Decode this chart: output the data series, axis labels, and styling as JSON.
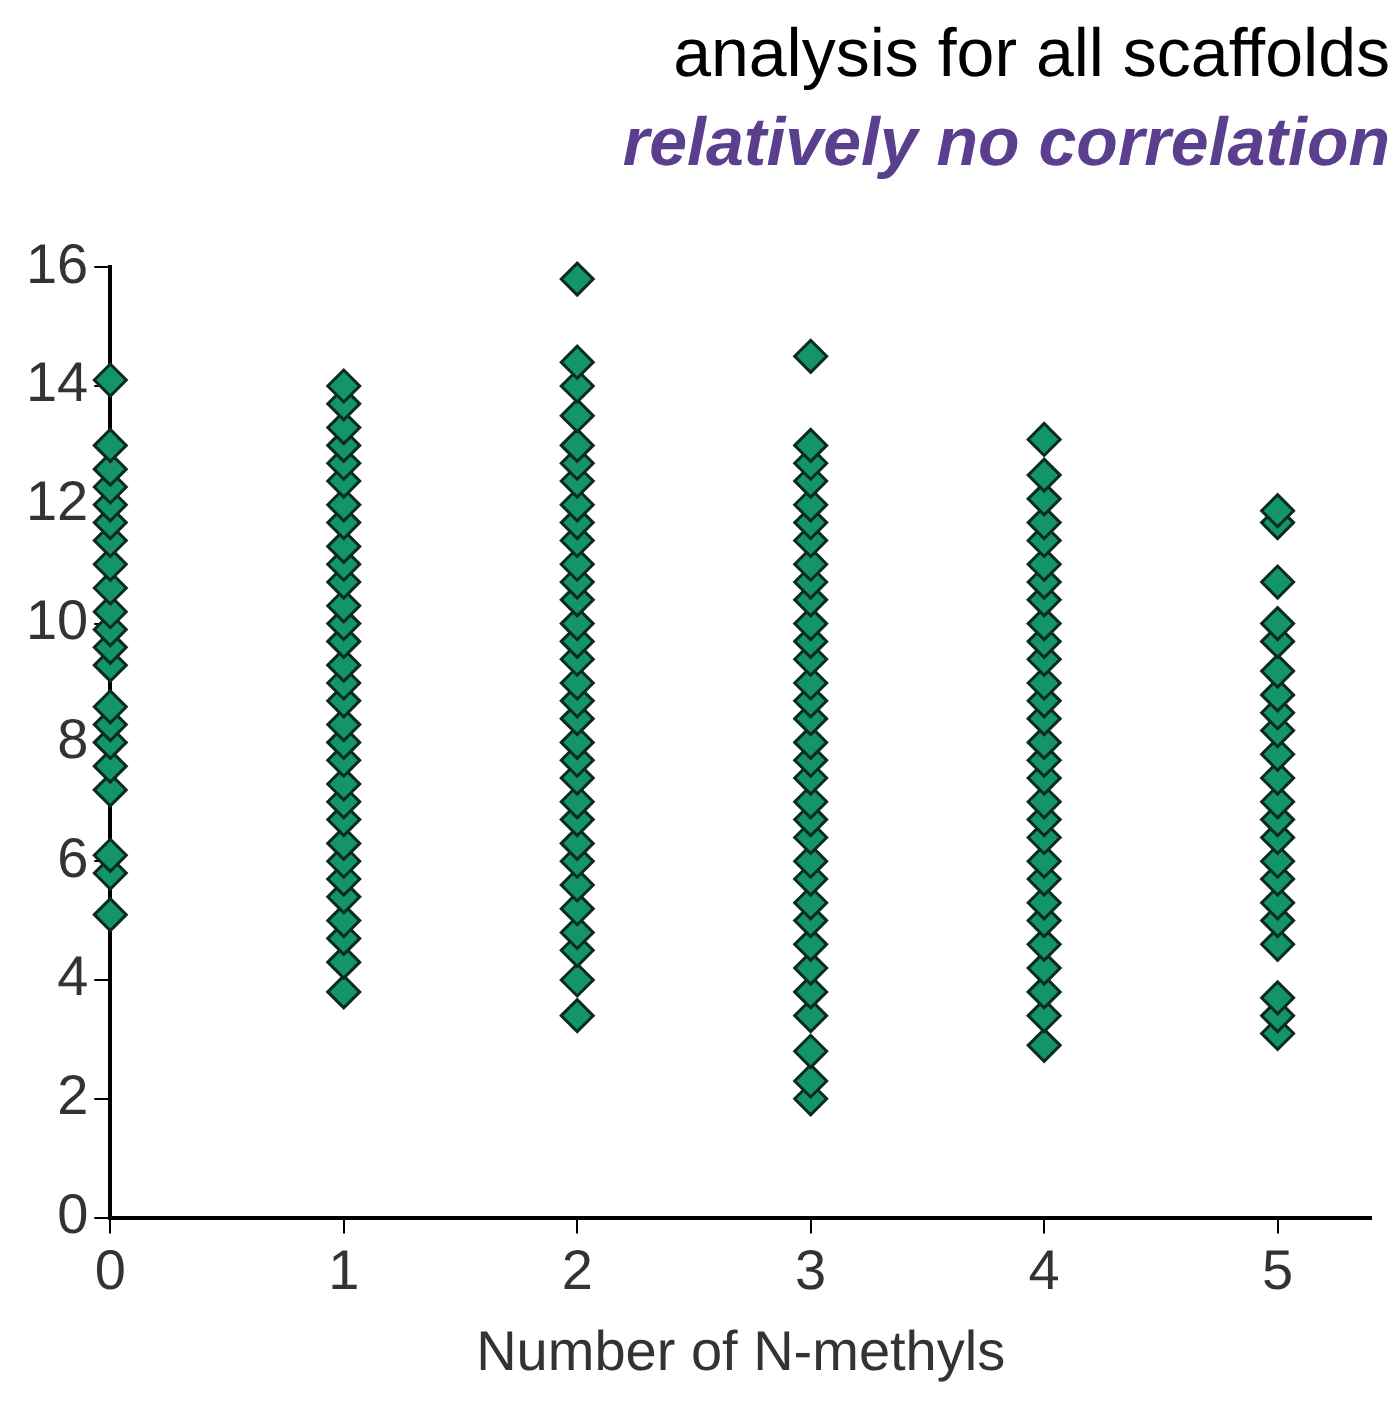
{
  "chart_data": {
    "type": "scatter",
    "title": "analysis for all scaffolds",
    "subtitle": "relatively no correlation",
    "xlabel": "Number of N-methyls",
    "marker": "diamond",
    "xlim": [
      0,
      5.4
    ],
    "xticks": [
      0,
      1,
      2,
      3,
      4,
      5
    ],
    "ylim": [
      0,
      16
    ],
    "yticks": [
      0,
      2,
      4,
      6,
      8,
      10,
      12,
      14,
      16
    ],
    "series": [
      {
        "color": "#14946a",
        "x": [
          0,
          0,
          0,
          0,
          0,
          0,
          0,
          0,
          0,
          0,
          0,
          0,
          0,
          0,
          0,
          0,
          0,
          0,
          0,
          0,
          0
        ],
        "values": [
          5.1,
          5.8,
          6.1,
          7.2,
          7.6,
          8.0,
          8.3,
          8.6,
          9.3,
          9.6,
          9.9,
          10.2,
          10.6,
          11.0,
          11.4,
          11.7,
          12.0,
          12.3,
          12.6,
          13.0,
          14.1
        ]
      },
      {
        "color": "#14946a",
        "x": [
          1,
          1,
          1,
          1,
          1,
          1,
          1,
          1,
          1,
          1,
          1,
          1,
          1,
          1,
          1,
          1,
          1,
          1,
          1,
          1,
          1,
          1,
          1,
          1,
          1,
          1,
          1,
          1,
          1,
          1,
          1
        ],
        "values": [
          3.8,
          4.3,
          4.7,
          5.0,
          5.4,
          5.7,
          6.0,
          6.3,
          6.7,
          7.0,
          7.3,
          7.7,
          8.0,
          8.3,
          8.7,
          9.0,
          9.3,
          9.7,
          10.0,
          10.3,
          10.7,
          11.0,
          11.3,
          11.7,
          12.0,
          12.4,
          12.7,
          13.0,
          13.3,
          13.7,
          14.0
        ]
      },
      {
        "color": "#14946a",
        "x": [
          2,
          2,
          2,
          2,
          2,
          2,
          2,
          2,
          2,
          2,
          2,
          2,
          2,
          2,
          2,
          2,
          2,
          2,
          2,
          2,
          2,
          2,
          2,
          2,
          2,
          2,
          2,
          2,
          2,
          2,
          2,
          2
        ],
        "values": [
          3.4,
          4.0,
          4.5,
          4.8,
          5.2,
          5.6,
          6.0,
          6.3,
          6.7,
          7.0,
          7.4,
          7.7,
          8.0,
          8.4,
          8.7,
          9.0,
          9.4,
          9.7,
          10.0,
          10.4,
          10.7,
          11.0,
          11.4,
          11.7,
          12.0,
          12.4,
          12.7,
          13.0,
          13.5,
          14.0,
          14.4,
          15.8
        ]
      },
      {
        "color": "#14946a",
        "x": [
          3,
          3,
          3,
          3,
          3,
          3,
          3,
          3,
          3,
          3,
          3,
          3,
          3,
          3,
          3,
          3,
          3,
          3,
          3,
          3,
          3,
          3,
          3,
          3,
          3,
          3,
          3,
          3,
          3,
          3,
          3,
          3,
          3
        ],
        "values": [
          2.0,
          2.3,
          2.8,
          3.4,
          3.8,
          4.2,
          4.6,
          5.0,
          5.3,
          5.7,
          6.0,
          6.4,
          6.7,
          7.0,
          7.4,
          7.7,
          8.0,
          8.4,
          8.7,
          9.0,
          9.4,
          9.7,
          10.0,
          10.4,
          10.7,
          11.0,
          11.4,
          11.7,
          12.0,
          12.4,
          12.7,
          13.0,
          14.5
        ]
      },
      {
        "color": "#14946a",
        "x": [
          4,
          4,
          4,
          4,
          4,
          4,
          4,
          4,
          4,
          4,
          4,
          4,
          4,
          4,
          4,
          4,
          4,
          4,
          4,
          4,
          4,
          4,
          4,
          4,
          4,
          4,
          4,
          4,
          4
        ],
        "values": [
          2.9,
          3.4,
          3.8,
          4.2,
          4.6,
          5.0,
          5.3,
          5.7,
          6.0,
          6.4,
          6.7,
          7.0,
          7.4,
          7.7,
          8.0,
          8.4,
          8.7,
          9.0,
          9.4,
          9.7,
          10.0,
          10.4,
          10.7,
          11.0,
          11.4,
          11.7,
          12.1,
          12.5,
          13.1
        ]
      },
      {
        "color": "#14946a",
        "x": [
          5,
          5,
          5,
          5,
          5,
          5,
          5,
          5,
          5,
          5,
          5,
          5,
          5,
          5,
          5,
          5,
          5,
          5,
          5,
          5,
          5,
          5
        ],
        "values": [
          3.1,
          3.4,
          3.7,
          4.6,
          5.0,
          5.3,
          5.7,
          6.0,
          6.4,
          6.7,
          7.0,
          7.4,
          7.8,
          8.2,
          8.5,
          8.8,
          9.2,
          9.7,
          10.0,
          10.7,
          11.7,
          11.9
        ]
      }
    ]
  }
}
